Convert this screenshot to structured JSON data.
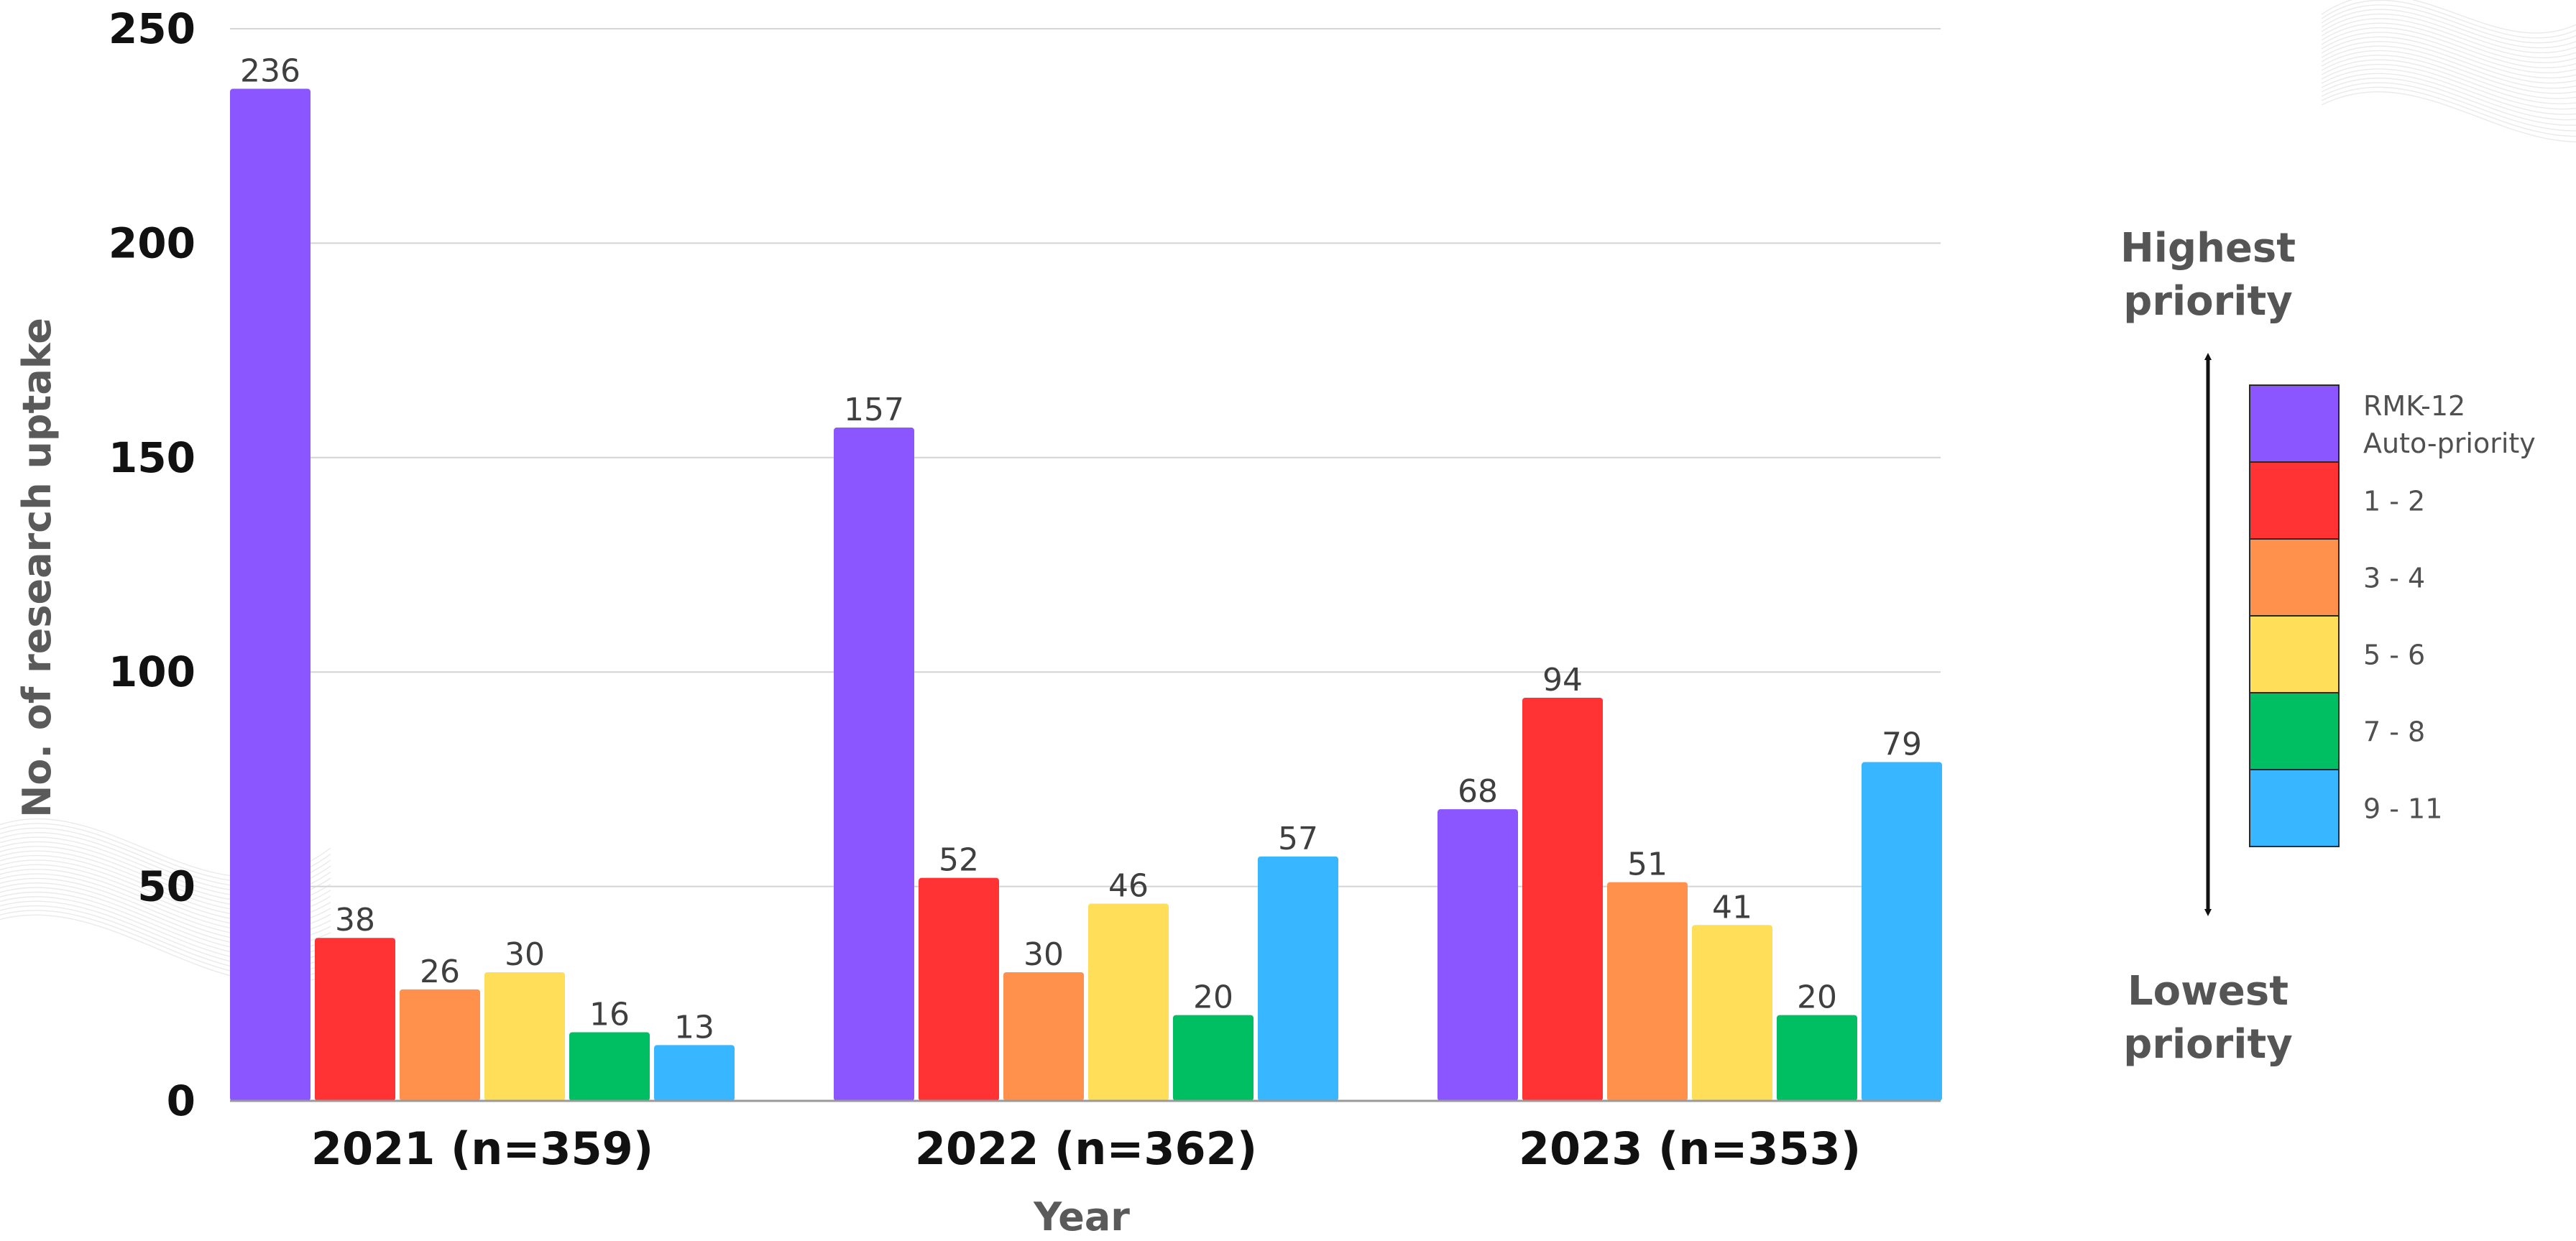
{
  "chart_data": {
    "type": "bar",
    "categories": [
      "2021 (n=359)",
      "2022 (n=362)",
      "2023 (n=353)"
    ],
    "series": [
      {
        "name": "RMK-12 Auto-priority",
        "color": "#8B55FF",
        "values": [
          236,
          157,
          68
        ]
      },
      {
        "name": "1 - 2",
        "color": "#FF3333",
        "values": [
          38,
          52,
          94
        ]
      },
      {
        "name": "3 - 4",
        "color": "#FF914D",
        "values": [
          26,
          30,
          51
        ]
      },
      {
        "name": "5 - 6",
        "color": "#FFDE59",
        "values": [
          30,
          46,
          41
        ]
      },
      {
        "name": "7 - 8",
        "color": "#00BF63",
        "values": [
          16,
          20,
          20
        ]
      },
      {
        "name": "9 - 11",
        "color": "#38B6FF",
        "values": [
          13,
          57,
          79
        ]
      }
    ],
    "xlabel": "Year",
    "ylabel": "No. of research uptake",
    "ylim": [
      0,
      250
    ],
    "yticks": [
      0,
      50,
      100,
      150,
      200,
      250
    ],
    "grid": true,
    "legend": {
      "placement": "right",
      "entries": [
        [
          "RMK-12",
          "Auto-priority"
        ],
        [
          "1 - 2"
        ],
        [
          "3 - 4"
        ],
        [
          "5 - 6"
        ],
        [
          "7 - 8"
        ],
        [
          "9 - 11"
        ]
      ],
      "top_caption": [
        "Highest",
        "priority"
      ],
      "bottom_caption": [
        "Lowest",
        "priority"
      ]
    }
  }
}
